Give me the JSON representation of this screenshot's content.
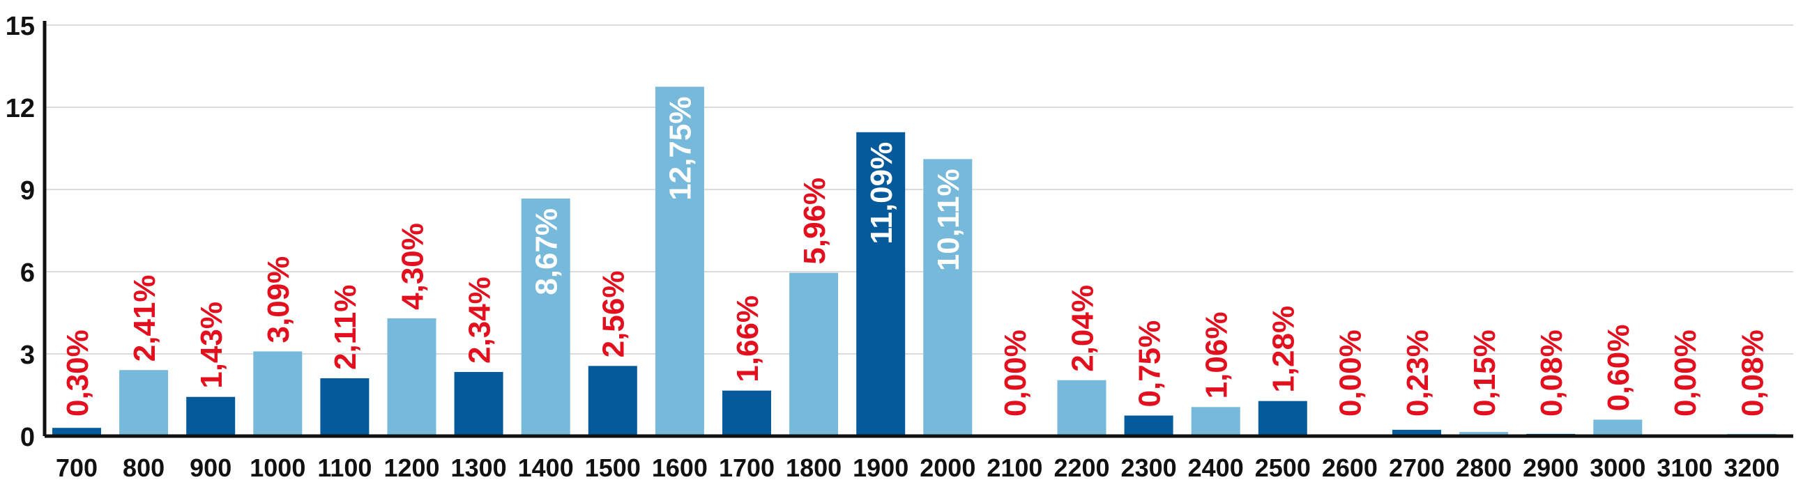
{
  "chart_data": {
    "type": "bar",
    "categories": [
      "700",
      "800",
      "900",
      "1000",
      "1100",
      "1200",
      "1300",
      "1400",
      "1500",
      "1600",
      "1700",
      "1800",
      "1900",
      "2000",
      "2100",
      "2200",
      "2300",
      "2400",
      "2500",
      "2600",
      "2700",
      "2800",
      "2900",
      "3000",
      "3100",
      "3200"
    ],
    "values": [
      0.3,
      2.41,
      1.43,
      3.09,
      2.11,
      4.3,
      2.34,
      8.67,
      2.56,
      12.75,
      1.66,
      5.96,
      11.09,
      10.11,
      0.0,
      2.04,
      0.75,
      1.06,
      1.28,
      0.0,
      0.23,
      0.15,
      0.08,
      0.6,
      0.0,
      0.08
    ],
    "data_labels": [
      "0,30%",
      "2,41%",
      "1,43%",
      "3,09%",
      "2,11%",
      "4,30%",
      "2,34%",
      "8,67%",
      "2,56%",
      "12,75%",
      "1,66%",
      "5,96%",
      "11,09%",
      "10,11%",
      "0,00%",
      "2,04%",
      "0,75%",
      "1,06%",
      "1,28%",
      "0,00%",
      "0,23%",
      "0,15%",
      "0,08%",
      "0,60%",
      "0,00%",
      "0,08%"
    ],
    "yticks": [
      "0",
      "3",
      "6",
      "9",
      "12",
      "15"
    ],
    "ylim": [
      0,
      15
    ],
    "xlabel": "",
    "ylabel": "",
    "title": "",
    "grid": true,
    "colors": {
      "dark_bar": "#045a9b",
      "light_bar": "#77b9da",
      "label_outside": "#e2101e",
      "label_inside": "#ffffff",
      "grid": "#cfcfcf",
      "axis": "#111111"
    }
  }
}
